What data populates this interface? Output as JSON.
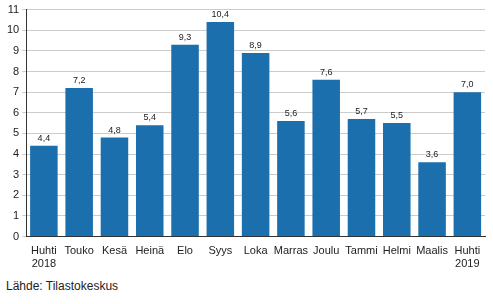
{
  "chart_data": {
    "type": "bar",
    "categories": [
      "Huhti\n2018",
      "Touko",
      "Kesä",
      "Heinä",
      "Elo",
      "Syys",
      "Loka",
      "Marras",
      "Joulu",
      "Tammi",
      "Helmi",
      "Maalis",
      "Huhti\n2019"
    ],
    "values": [
      4.4,
      7.2,
      4.8,
      5.4,
      9.3,
      10.4,
      8.9,
      5.6,
      7.6,
      5.7,
      5.5,
      3.6,
      7.0
    ],
    "value_labels": [
      "4,4",
      "7,2",
      "4,8",
      "5,4",
      "9,3",
      "10,4",
      "8,9",
      "5,6",
      "7,6",
      "5,7",
      "5,5",
      "3,6",
      "7,0"
    ],
    "data_labels": true,
    "color": "#1b6fad",
    "ylim": [
      0,
      11
    ],
    "yticks": [
      0,
      1,
      2,
      3,
      4,
      5,
      6,
      7,
      8,
      9,
      10,
      11
    ],
    "grid": true,
    "source": "Lähde: Tilastokeskus"
  }
}
